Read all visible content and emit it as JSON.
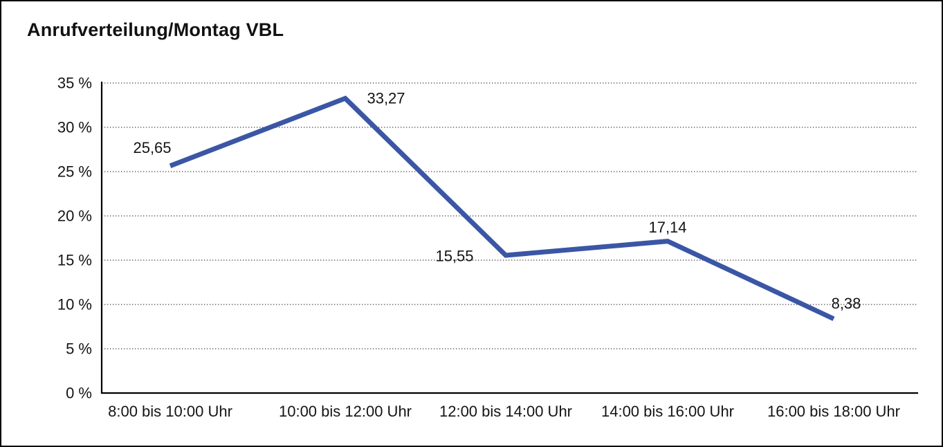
{
  "title": "Anrufverteilung/Montag VBL",
  "chart_data": {
    "type": "line",
    "title": "Anrufverteilung/Montag VBL",
    "categories": [
      "8:00 bis 10:00 Uhr",
      "10:00 bis 12:00 Uhr",
      "12:00 bis 14:00 Uhr",
      "14:00 bis 16:00 Uhr",
      "16:00 bis 18:00 Uhr"
    ],
    "values": [
      25.65,
      33.27,
      15.55,
      17.14,
      8.38
    ],
    "point_labels": [
      "25,65",
      "33,27",
      "15,55",
      "17,14",
      "8,38"
    ],
    "y_ticks": [
      {
        "value": 0,
        "label": "0 %"
      },
      {
        "value": 5,
        "label": "5 %"
      },
      {
        "value": 10,
        "label": "10 %"
      },
      {
        "value": 15,
        "label": "15 %"
      },
      {
        "value": 20,
        "label": "20 %"
      },
      {
        "value": 25,
        "label": "25 %"
      },
      {
        "value": 30,
        "label": "30 %"
      },
      {
        "value": 35,
        "label": "35 %"
      }
    ],
    "ylim": [
      0,
      35
    ],
    "xlabel": "",
    "ylabel": "",
    "grid": "horizontal-dotted",
    "legend": "none",
    "line_color": "#3a56a5",
    "text_color": "#141414",
    "axis_color": "#000000",
    "background_color": "#ffffff"
  }
}
